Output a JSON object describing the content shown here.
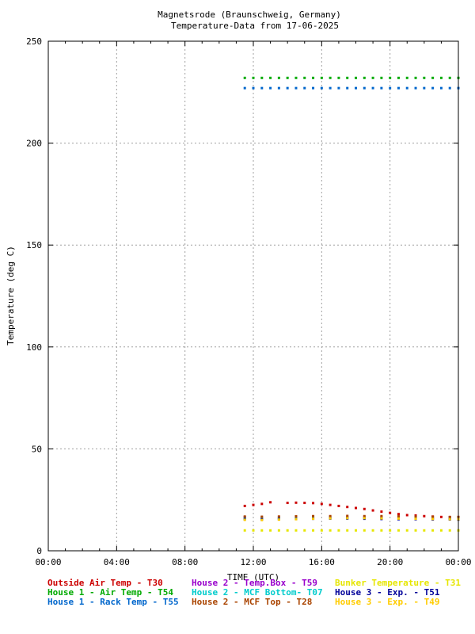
{
  "chart_data": {
    "type": "scatter",
    "title": "Magnetsrode (Braunschweig, Germany)",
    "subtitle": "Temperature-Data from 17-06-2025",
    "xlabel": "TIME (UTC)",
    "ylabel": "Temperature (deg C)",
    "xlim": [
      0,
      24
    ],
    "ylim": [
      0,
      250
    ],
    "x_ticks": [
      {
        "v": 0,
        "label": "00:00"
      },
      {
        "v": 4,
        "label": "04:00"
      },
      {
        "v": 8,
        "label": "08:00"
      },
      {
        "v": 12,
        "label": "12:00"
      },
      {
        "v": 16,
        "label": "16:00"
      },
      {
        "v": 20,
        "label": "20:00"
      },
      {
        "v": 24,
        "label": "00:00"
      }
    ],
    "y_ticks": [
      {
        "v": 0,
        "label": "0"
      },
      {
        "v": 50,
        "label": "50"
      },
      {
        "v": 100,
        "label": "100"
      },
      {
        "v": 150,
        "label": "150"
      },
      {
        "v": 200,
        "label": "200"
      },
      {
        "v": 250,
        "label": "250"
      }
    ],
    "grid": true,
    "legend_position": "bottom",
    "series": [
      {
        "name": "Outside Air Temp    - T30",
        "color": "#cc0000",
        "x": [
          11.5,
          12.0,
          12.5,
          13.0,
          13.5,
          14.0,
          14.5,
          15.0,
          15.5,
          16.0,
          16.5,
          17.0,
          17.5,
          18.0,
          18.5,
          19.0,
          19.5,
          20.0,
          20.5,
          21.0,
          21.5,
          22.0,
          22.5,
          23.0,
          23.5,
          24.0
        ],
        "y": [
          22.0,
          22.5,
          23.0,
          23.8,
          null,
          23.5,
          23.6,
          23.5,
          23.4,
          23.0,
          22.5,
          22.0,
          21.5,
          21.0,
          20.5,
          19.8,
          19.2,
          18.6,
          18.0,
          17.5,
          17.3,
          17.0,
          16.8,
          16.6,
          16.5,
          16.4
        ]
      },
      {
        "name": "House 2 - Temp.Box  - T59",
        "color": "#9900cc",
        "x": [
          11.5,
          12.5,
          13.5,
          14.5,
          15.5,
          16.5,
          17.5,
          18.5,
          19.5,
          20.5,
          21.5,
          22.5,
          23.5,
          24.0
        ],
        "y": [
          16.5,
          16.3,
          16.3,
          16.4,
          16.5,
          16.5,
          16.6,
          16.6,
          16.5,
          16.5,
          16.4,
          16.3,
          16.2,
          16.2
        ]
      },
      {
        "name": "Bunker Temperature  - T31",
        "color": "#e6e600",
        "x": [
          11.5,
          12.0,
          12.5,
          13.0,
          13.5,
          14.0,
          14.5,
          15.0,
          15.5,
          16.0,
          16.5,
          17.0,
          17.5,
          18.0,
          18.5,
          19.0,
          19.5,
          20.0,
          20.5,
          21.0,
          21.5,
          22.0,
          22.5,
          23.0,
          23.5,
          24.0
        ],
        "y": [
          10,
          10,
          10,
          10,
          10,
          10,
          10,
          10,
          10,
          10,
          10,
          10,
          10,
          10,
          10,
          10,
          10,
          10,
          10,
          10,
          10,
          10,
          10,
          10,
          10,
          10
        ]
      },
      {
        "name": "House 1 - Air  Temp - T54",
        "color": "#00aa00",
        "x": [
          11.5,
          12.0,
          12.5,
          13.0,
          13.5,
          14.0,
          14.5,
          15.0,
          15.5,
          16.0,
          16.5,
          17.0,
          17.5,
          18.0,
          18.5,
          19.0,
          19.5,
          20.0,
          20.5,
          21.0,
          21.5,
          22.0,
          22.5,
          23.0,
          23.5,
          24.0
        ],
        "y": [
          232,
          232,
          232,
          232,
          232,
          232,
          232,
          232,
          232,
          232,
          232,
          232,
          232,
          232,
          232,
          232,
          232,
          232,
          232,
          232,
          232,
          232,
          232,
          232,
          232,
          232
        ]
      },
      {
        "name": "House 2 - MCF Bottom- T07",
        "color": "#00cccc",
        "x": [
          11.5,
          12.5,
          13.5,
          14.5,
          15.5,
          16.5,
          17.5,
          18.5,
          19.5,
          20.5,
          21.5,
          22.5,
          23.5,
          24.0
        ],
        "y": [
          16.0,
          15.8,
          15.9,
          16.0,
          16.1,
          16.2,
          16.2,
          16.1,
          16.0,
          16.0,
          15.9,
          15.9,
          15.8,
          15.8
        ]
      },
      {
        "name": "House 3 - Exp.      - T51",
        "color": "#000099",
        "x": [
          11.5,
          12.5,
          13.5,
          14.5,
          15.5,
          16.5,
          17.5,
          18.5,
          19.5,
          20.5,
          21.5,
          22.5,
          23.5,
          24.0
        ],
        "y": [
          15.5,
          15.4,
          15.5,
          15.6,
          15.7,
          15.8,
          15.8,
          15.7,
          15.6,
          15.5,
          15.5,
          15.4,
          15.4,
          15.3
        ]
      },
      {
        "name": "House 1 - Rack Temp - T55",
        "color": "#0066cc",
        "x": [
          11.5,
          12.0,
          12.5,
          13.0,
          13.5,
          14.0,
          14.5,
          15.0,
          15.5,
          16.0,
          16.5,
          17.0,
          17.5,
          18.0,
          18.5,
          19.0,
          19.5,
          20.0,
          20.5,
          21.0,
          21.5,
          22.0,
          22.5,
          23.0,
          23.5,
          24.0
        ],
        "y": [
          227,
          227,
          227,
          227,
          227,
          227,
          227,
          227,
          227,
          227,
          227,
          227,
          227,
          227,
          227,
          227,
          227,
          227,
          227,
          227,
          227,
          227,
          227,
          227,
          227,
          227
        ]
      },
      {
        "name": "House 2 - MCF Top   - T28",
        "color": "#aa4400",
        "x": [
          11.5,
          12.5,
          13.5,
          14.5,
          15.5,
          16.5,
          17.5,
          18.5,
          19.5,
          20.5,
          21.5,
          22.5,
          23.5,
          24.0
        ],
        "y": [
          16.8,
          16.7,
          16.8,
          16.9,
          17.0,
          17.0,
          17.1,
          17.0,
          17.0,
          16.9,
          16.8,
          16.7,
          16.6,
          16.6
        ]
      },
      {
        "name": "House 3 - Exp.      - T49",
        "color": "#ffcc00",
        "x": [
          11.5,
          12.5,
          13.5,
          14.5,
          15.5,
          16.5,
          17.5,
          18.5,
          19.5,
          20.5,
          21.5,
          22.5,
          23.5,
          24.0
        ],
        "y": [
          15.2,
          15.1,
          15.3,
          15.5,
          15.7,
          15.9,
          16.0,
          16.0,
          15.9,
          15.8,
          15.7,
          15.6,
          15.5,
          15.5
        ]
      }
    ]
  }
}
